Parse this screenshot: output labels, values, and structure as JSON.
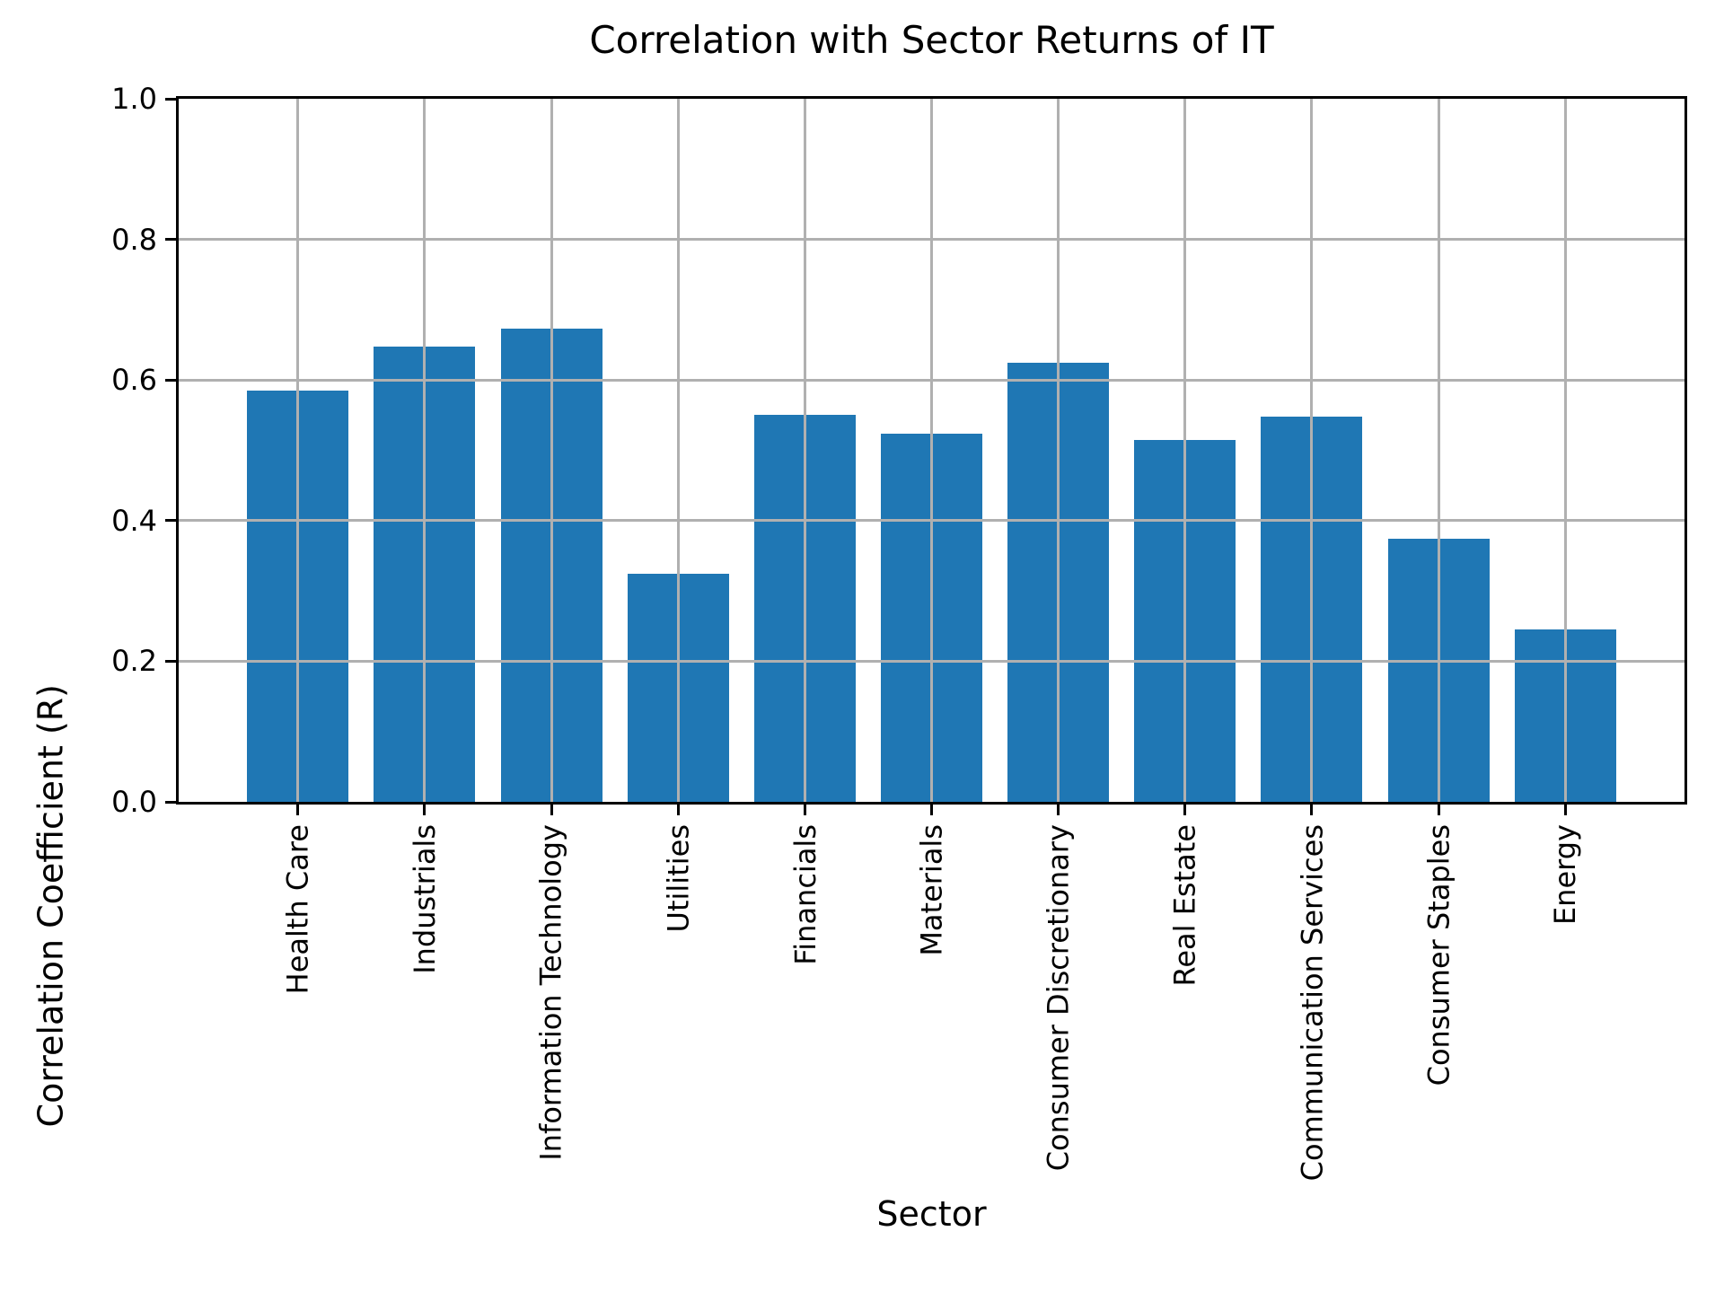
{
  "chart_data": {
    "type": "bar",
    "title": "Correlation with Sector Returns of IT",
    "xlabel": "Sector",
    "ylabel": "Correlation Coefficient (R)",
    "categories": [
      "Health Care",
      "Industrials",
      "Information Technology",
      "Utilities",
      "Financials",
      "Materials",
      "Consumer Discretionary",
      "Real Estate",
      "Communication Services",
      "Consumer Staples",
      "Energy"
    ],
    "values": [
      0.585,
      0.648,
      0.673,
      0.324,
      0.551,
      0.524,
      0.625,
      0.515,
      0.548,
      0.374,
      0.245
    ],
    "ylim": [
      0.0,
      1.0
    ],
    "y_ticks": [
      "0.0",
      "0.2",
      "0.4",
      "0.6",
      "0.8",
      "1.0"
    ],
    "y_tick_values": [
      0.0,
      0.2,
      0.4,
      0.6,
      0.8,
      1.0
    ],
    "grid": true,
    "legend": "none",
    "bar_color": "#1f77b4",
    "grid_color": "#b0b0b0",
    "axis_color": "#000000"
  }
}
